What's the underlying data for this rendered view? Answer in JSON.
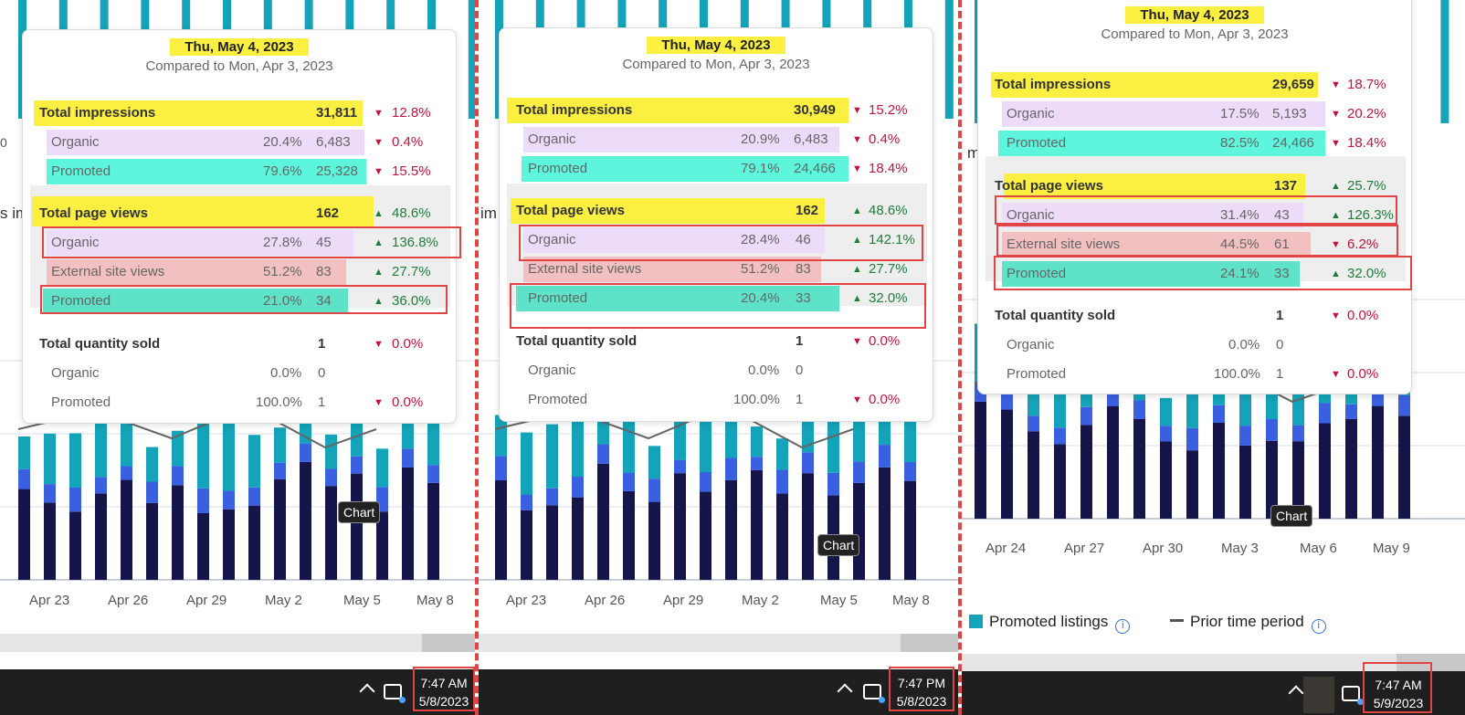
{
  "colors": {
    "organic_bar": "#15154a",
    "external_bar": "#3a5fe0",
    "promoted_bar": "#14a3b8",
    "highlight_yellow": "#fbef41",
    "highlight_purple": "#ecdcfa",
    "highlight_red": "#f2c0c0",
    "highlight_teal": "#5ef5dd",
    "down": "#c0143c",
    "up": "#1e7e3a",
    "annotation_red": "#e04444"
  },
  "panels": [
    {
      "tooltip": {
        "title": "Thu, May 4, 2023",
        "subtitle": "Compared to Mon, Apr 3, 2023",
        "sections": [
          {
            "rows": [
              {
                "label": "Total impressions",
                "pct": "",
                "count": "31,811",
                "dir": "down",
                "delta": "12.8%"
              },
              {
                "label": "Organic",
                "pct": "20.4%",
                "count": "6,483",
                "dir": "down",
                "delta": "0.4%"
              },
              {
                "label": "Promoted",
                "pct": "79.6%",
                "count": "25,328",
                "dir": "down",
                "delta": "15.5%"
              }
            ]
          },
          {
            "rows": [
              {
                "label": "Total page views",
                "pct": "",
                "count": "162",
                "dir": "up",
                "delta": "48.6%"
              },
              {
                "label": "Organic",
                "pct": "27.8%",
                "count": "45",
                "dir": "up",
                "delta": "136.8%"
              },
              {
                "label": "External site views",
                "pct": "51.2%",
                "count": "83",
                "dir": "up",
                "delta": "27.7%"
              },
              {
                "label": "Promoted",
                "pct": "21.0%",
                "count": "34",
                "dir": "up",
                "delta": "36.0%"
              }
            ]
          },
          {
            "rows": [
              {
                "label": "Total quantity sold",
                "pct": "",
                "count": "1",
                "dir": "down",
                "delta": "0.0%"
              },
              {
                "label": "Organic",
                "pct": "0.0%",
                "count": "0",
                "dir": "",
                "delta": ""
              },
              {
                "label": "Promoted",
                "pct": "100.0%",
                "count": "1",
                "dir": "down",
                "delta": "0.0%"
              }
            ]
          }
        ]
      },
      "x_labels": [
        "Apr 23",
        "Apr 26",
        "Apr 29",
        "May 2",
        "May 5",
        "May 8"
      ],
      "chart_tooltip": "Chart",
      "fragments": [
        "0",
        "s im"
      ],
      "taskbar": {
        "time": "7:47 AM",
        "date": "5/8/2023"
      }
    },
    {
      "tooltip": {
        "title": "Thu, May 4, 2023",
        "subtitle": "Compared to Mon, Apr 3, 2023",
        "sections": [
          {
            "rows": [
              {
                "label": "Total impressions",
                "pct": "",
                "count": "30,949",
                "dir": "down",
                "delta": "15.2%"
              },
              {
                "label": "Organic",
                "pct": "20.9%",
                "count": "6,483",
                "dir": "down",
                "delta": "0.4%"
              },
              {
                "label": "Promoted",
                "pct": "79.1%",
                "count": "24,466",
                "dir": "down",
                "delta": "18.4%"
              }
            ]
          },
          {
            "rows": [
              {
                "label": "Total page views",
                "pct": "",
                "count": "162",
                "dir": "up",
                "delta": "48.6%"
              },
              {
                "label": "Organic",
                "pct": "28.4%",
                "count": "46",
                "dir": "up",
                "delta": "142.1%"
              },
              {
                "label": "External site views",
                "pct": "51.2%",
                "count": "83",
                "dir": "up",
                "delta": "27.7%"
              },
              {
                "label": "Promoted",
                "pct": "20.4%",
                "count": "33",
                "dir": "up",
                "delta": "32.0%"
              }
            ]
          },
          {
            "rows": [
              {
                "label": "Total quantity sold",
                "pct": "",
                "count": "1",
                "dir": "down",
                "delta": "0.0%"
              },
              {
                "label": "Organic",
                "pct": "0.0%",
                "count": "0",
                "dir": "",
                "delta": ""
              },
              {
                "label": "Promoted",
                "pct": "100.0%",
                "count": "1",
                "dir": "down",
                "delta": "0.0%"
              }
            ]
          }
        ]
      },
      "x_labels": [
        "Apr 23",
        "Apr 26",
        "Apr 29",
        "May 2",
        "May 5",
        "May 8"
      ],
      "chart_tooltip": "Chart",
      "fragments": [
        "im"
      ],
      "taskbar": {
        "time": "7:47 PM",
        "date": "5/8/2023"
      }
    },
    {
      "tooltip": {
        "title": "Thu, May 4, 2023",
        "subtitle": "Compared to Mon, Apr 3, 2023",
        "sections": [
          {
            "rows": [
              {
                "label": "Total impressions",
                "pct": "",
                "count": "29,659",
                "dir": "down",
                "delta": "18.7%"
              },
              {
                "label": "Organic",
                "pct": "17.5%",
                "count": "5,193",
                "dir": "down",
                "delta": "20.2%"
              },
              {
                "label": "Promoted",
                "pct": "82.5%",
                "count": "24,466",
                "dir": "down",
                "delta": "18.4%"
              }
            ]
          },
          {
            "rows": [
              {
                "label": "Total page views",
                "pct": "",
                "count": "137",
                "dir": "up",
                "delta": "25.7%"
              },
              {
                "label": "Organic",
                "pct": "31.4%",
                "count": "43",
                "dir": "up",
                "delta": "126.3%"
              },
              {
                "label": "External site views",
                "pct": "44.5%",
                "count": "61",
                "dir": "down",
                "delta": "6.2%"
              },
              {
                "label": "Promoted",
                "pct": "24.1%",
                "count": "33",
                "dir": "up",
                "delta": "32.0%"
              }
            ]
          },
          {
            "rows": [
              {
                "label": "Total quantity sold",
                "pct": "",
                "count": "1",
                "dir": "down",
                "delta": "0.0%"
              },
              {
                "label": "Organic",
                "pct": "0.0%",
                "count": "0",
                "dir": "",
                "delta": ""
              },
              {
                "label": "Promoted",
                "pct": "100.0%",
                "count": "1",
                "dir": "down",
                "delta": "0.0%"
              }
            ]
          }
        ]
      },
      "x_labels": [
        "Apr 24",
        "Apr 27",
        "Apr 30",
        "May 3",
        "May 6",
        "May 9"
      ],
      "chart_tooltip": "Chart",
      "fragments": [
        "m"
      ],
      "legend": {
        "promoted": "Promoted listings",
        "prior": "Prior time period",
        "info_icon": "i"
      },
      "taskbar": {
        "time": "7:47 AM",
        "date": "5/9/2023"
      }
    }
  ]
}
